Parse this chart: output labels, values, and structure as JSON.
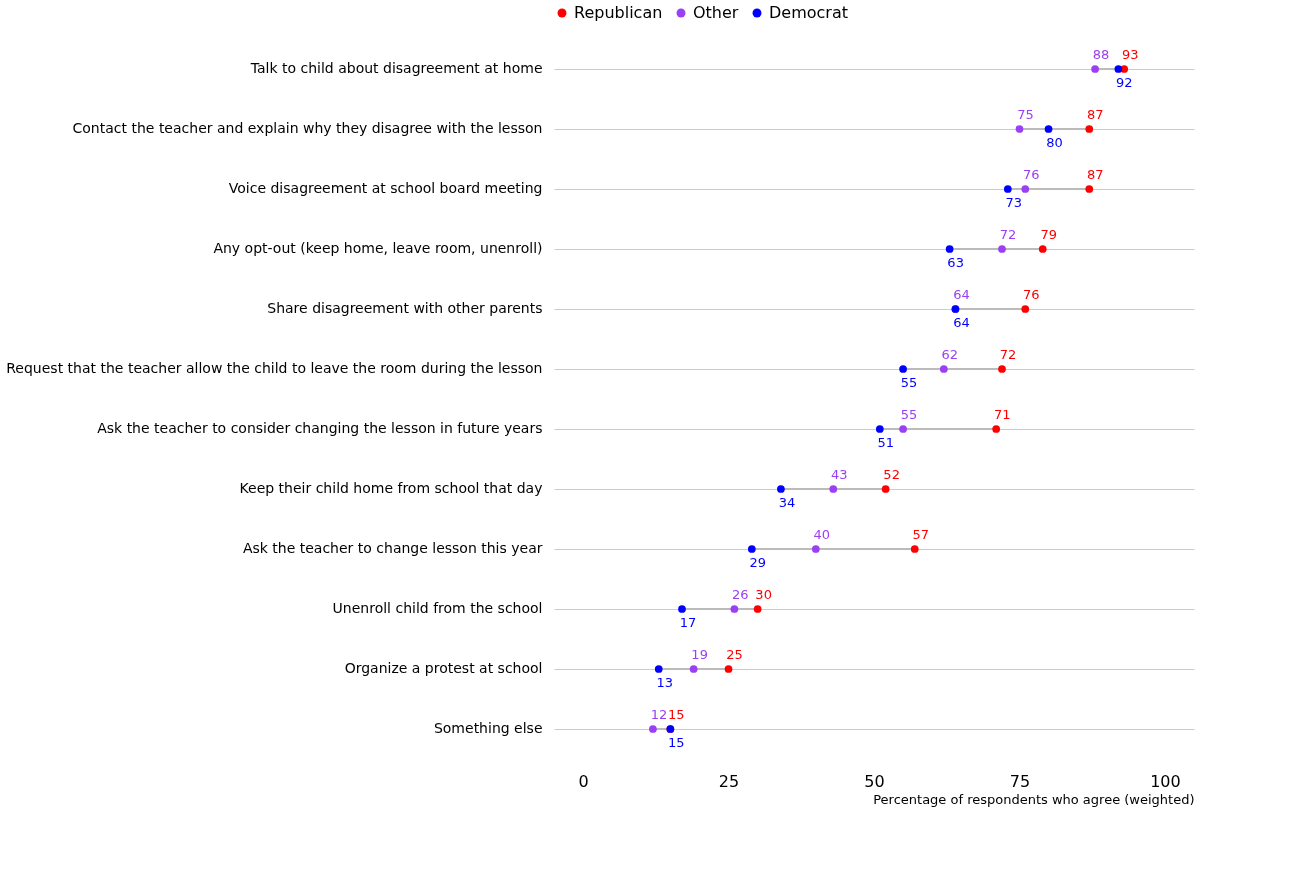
{
  "chart_data": {
    "type": "scatter",
    "orientation": "horizontal",
    "categories": [
      "Talk to child about disagreement at home",
      "Contact the teacher and explain why they disagree with the lesson",
      "Voice disagreement at school board meeting",
      "Any opt-out (keep home, leave room, unenroll)",
      "Share disagreement with other parents",
      "Request that the teacher allow the child to leave the room during the lesson",
      "Ask the teacher to consider changing the lesson in future years",
      "Keep their child home from school that day",
      "Ask the teacher to change lesson this year",
      "Unenroll child from the school",
      "Organize a protest at school",
      "Something else"
    ],
    "series": [
      {
        "name": "Republican",
        "color": "#ff0000",
        "values": [
          93,
          87,
          87,
          79,
          76,
          72,
          71,
          52,
          57,
          30,
          25,
          15
        ]
      },
      {
        "name": "Other",
        "color": "#9b3ff5",
        "values": [
          88,
          75,
          76,
          72,
          64,
          62,
          55,
          43,
          40,
          26,
          19,
          12
        ]
      },
      {
        "name": "Democrat",
        "color": "#0000ff",
        "values": [
          92,
          80,
          73,
          63,
          64,
          55,
          51,
          34,
          29,
          17,
          13,
          15
        ]
      }
    ],
    "xlabel": "Percentage of respondents who agree (weighted)",
    "xlim": [
      -5,
      105
    ],
    "xticks": [
      0,
      25,
      50,
      75,
      100
    ],
    "data_labels": true,
    "grid": "y",
    "legend": "top",
    "marker": "circle"
  }
}
